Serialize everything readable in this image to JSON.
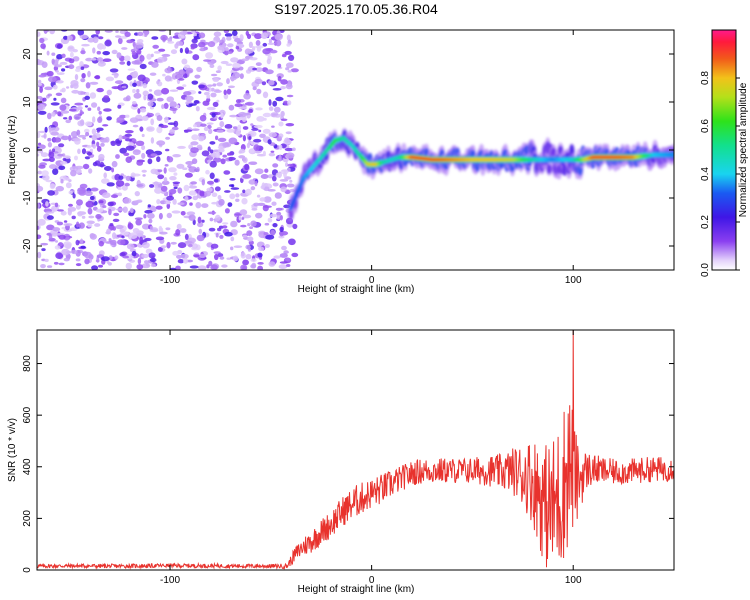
{
  "title": "S197.2025.170.05.36.R04",
  "colors": {
    "noise": "#8a3ff0",
    "snr_line": "#e8322d",
    "axis": "#000000",
    "ridge_core": "#ff1a3c"
  },
  "chart_data": [
    {
      "type": "heatmap",
      "xlabel": "Height of straight line (km)",
      "ylabel": "Frequency (Hz)",
      "xlim": [
        -166,
        150
      ],
      "ylim": [
        -25,
        25
      ],
      "x_ticks": [
        -100,
        0,
        100
      ],
      "y_ticks": [
        -20,
        -10,
        0,
        10,
        20
      ],
      "grid": false,
      "colorbar": {
        "label": "Normalized spectral amplitude",
        "range": [
          0,
          1
        ],
        "ticks": [
          "0.0",
          "0.2",
          "0.4",
          "0.6",
          "0.8"
        ],
        "tick_values": [
          0.0,
          0.2,
          0.4,
          0.6,
          0.8
        ]
      },
      "ridge": {
        "x": [
          -40,
          -37,
          -34,
          -30,
          -26,
          -22,
          -18,
          -14,
          -10,
          -6,
          -2,
          2,
          6,
          10,
          14,
          20,
          30,
          40,
          50,
          60,
          70,
          80,
          85,
          90,
          95,
          100,
          105,
          110,
          120,
          130,
          140,
          150
        ],
        "y": [
          -12,
          -9,
          -6,
          -4,
          -2,
          0,
          2,
          2.5,
          1,
          -1,
          -3,
          -3,
          -2.5,
          -2,
          -1.5,
          -1.5,
          -2,
          -2,
          -2,
          -2,
          -2,
          -2,
          -2,
          -2,
          -2,
          -2,
          -2,
          -1.5,
          -1.5,
          -1.5,
          -1,
          -1
        ],
        "amplitude": [
          0.3,
          0.3,
          0.35,
          0.4,
          0.45,
          0.5,
          0.6,
          0.5,
          0.45,
          0.5,
          0.75,
          0.8,
          0.5,
          0.45,
          0.5,
          0.9,
          0.9,
          0.85,
          0.8,
          0.8,
          0.75,
          0.5,
          0.4,
          0.35,
          0.4,
          0.45,
          0.7,
          0.9,
          0.9,
          0.85,
          0.4,
          0.35
        ]
      }
    },
    {
      "type": "line",
      "xlabel": "Height of straight line (km)",
      "ylabel": "SNR (10 * v/v)",
      "xlim": [
        -166,
        150
      ],
      "ylim": [
        0,
        930
      ],
      "x_ticks": [
        -100,
        0,
        100
      ],
      "y_ticks": [
        0,
        200,
        400,
        600,
        800
      ],
      "grid": false,
      "series": [
        {
          "x": [
            -166,
            -150,
            -125,
            -100,
            -75,
            -50,
            -42,
            -38,
            -34,
            -30,
            -26,
            -20,
            -14,
            -8,
            -2,
            4,
            10,
            16,
            22,
            28,
            34,
            40,
            46,
            52,
            58,
            64,
            70,
            74,
            78,
            82,
            86,
            90,
            94,
            98,
            102,
            106,
            110,
            114,
            120,
            126,
            132,
            138,
            144,
            150
          ],
          "y": [
            15,
            16,
            15,
            17,
            16,
            15,
            15,
            60,
            90,
            110,
            140,
            180,
            230,
            265,
            290,
            310,
            335,
            360,
            380,
            385,
            385,
            385,
            385,
            385,
            385,
            380,
            385,
            370,
            360,
            320,
            250,
            240,
            300,
            420,
            340,
            385,
            390,
            385,
            380,
            380,
            385,
            390,
            390,
            395
          ],
          "amp": [
            8,
            8,
            8,
            8,
            8,
            8,
            10,
            30,
            40,
            45,
            50,
            55,
            60,
            65,
            60,
            60,
            55,
            50,
            50,
            50,
            50,
            50,
            50,
            55,
            60,
            70,
            90,
            120,
            150,
            200,
            240,
            280,
            300,
            320,
            160,
            80,
            60,
            55,
            50,
            50,
            50,
            50,
            50,
            50
          ],
          "peak": {
            "x": 100,
            "y": 930
          }
        }
      ]
    }
  ]
}
